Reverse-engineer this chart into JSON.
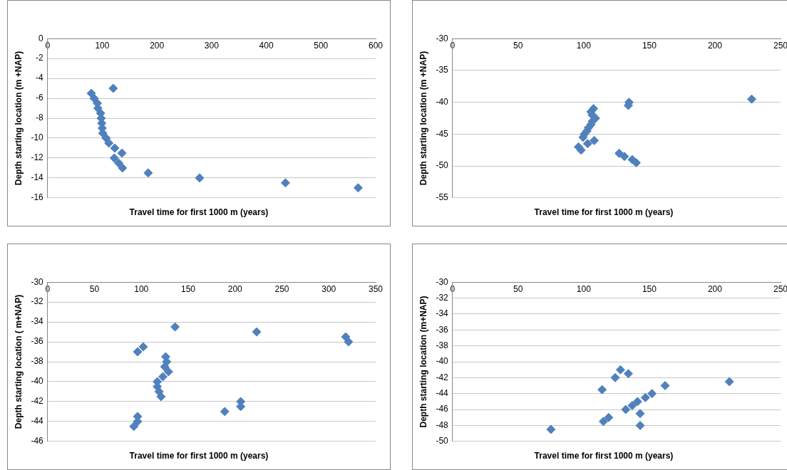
{
  "chart_data": [
    {
      "type": "scatter",
      "xlabel": "Travel time for first 1000 m (years)",
      "ylabel": "Depth starting location (m +NAP)",
      "color": "#4f81bd",
      "marker": "diamond",
      "grid": "y",
      "legend": false,
      "x": [
        120,
        80,
        85,
        91,
        92,
        97,
        98,
        99,
        100,
        101,
        107,
        112,
        123,
        136,
        122,
        130,
        137,
        184,
        278,
        435,
        568
      ],
      "values": [
        -5,
        -5.5,
        -6,
        -6.5,
        -7,
        -7.5,
        -8,
        -8.5,
        -9,
        -9.5,
        -10,
        -10.5,
        -11,
        -11.5,
        -12,
        -12.5,
        -13,
        -13.5,
        -14,
        -14.5,
        -15
      ],
      "xlim": [
        0,
        600
      ],
      "xticks": [
        0,
        100,
        200,
        300,
        400,
        500,
        600
      ],
      "ylim": [
        -16,
        0
      ],
      "yticks": [
        0,
        -2,
        -4,
        -6,
        -8,
        -10,
        -12,
        -14,
        -16
      ]
    },
    {
      "type": "scatter",
      "xlabel": "Travel time for first 1000 m (years)",
      "ylabel": "Depth starting location (m +NAP)",
      "color": "#4f81bd",
      "marker": "diamond",
      "grid": "y",
      "legend": false,
      "x": [
        228,
        134.5,
        134,
        107.5,
        105.5,
        106.5,
        109,
        106.5,
        105.5,
        103.5,
        102.5,
        100.5,
        99.5,
        108,
        103,
        96,
        98,
        127,
        131,
        137,
        140
      ],
      "values": [
        -39.5,
        -40,
        -40.5,
        -41,
        -41.5,
        -42,
        -42.5,
        -43,
        -43.5,
        -44,
        -44.5,
        -45,
        -45.5,
        -46,
        -46.5,
        -47,
        -47.5,
        -48,
        -48.5,
        -49,
        -49.5
      ],
      "xlim": [
        0,
        250
      ],
      "xticks": [
        0,
        50,
        100,
        150,
        200,
        250
      ],
      "ylim": [
        -55,
        -30
      ],
      "yticks": [
        -30,
        -35,
        -40,
        -45,
        -50,
        -55
      ]
    },
    {
      "type": "scatter",
      "xlabel": "Travel time for first 1000 m (years)",
      "ylabel": "Depth starting location ( m+NAP)",
      "color": "#4f81bd",
      "marker": "diamond",
      "grid": "y",
      "legend": false,
      "x": [
        136,
        223,
        318,
        321,
        102,
        96,
        126,
        127,
        125,
        129,
        123,
        117,
        117,
        119,
        121,
        206,
        206,
        189,
        96,
        96,
        92
      ],
      "values": [
        -34.5,
        -35,
        -35.5,
        -36,
        -36.5,
        -37,
        -37.5,
        -38,
        -38.5,
        -39,
        -39.5,
        -40,
        -40.5,
        -41,
        -41.5,
        -42,
        -42.5,
        -43,
        -43.5,
        -44,
        -44.5
      ],
      "xlim": [
        0,
        350
      ],
      "xticks": [
        0,
        50,
        100,
        150,
        200,
        250,
        300,
        350
      ],
      "ylim": [
        -46,
        -30
      ],
      "yticks": [
        -30,
        -32,
        -34,
        -36,
        -38,
        -40,
        -42,
        -44,
        -46
      ]
    },
    {
      "type": "scatter",
      "xlabel": "Travel time for first 1000 m (years)",
      "ylabel": "Depth starting location (m+NAP)",
      "color": "#4f81bd",
      "marker": "diamond",
      "grid": "y",
      "legend": false,
      "x": [
        128,
        134,
        124,
        211,
        162,
        114,
        152,
        147,
        141,
        137,
        132,
        143,
        119,
        115,
        143,
        75
      ],
      "values": [
        -41,
        -41.5,
        -42,
        -42.5,
        -43,
        -43.5,
        -44,
        -44.5,
        -45,
        -45.5,
        -46,
        -46.5,
        -47,
        -47.5,
        -48,
        -48.5
      ],
      "xlim": [
        0,
        250
      ],
      "xticks": [
        0,
        50,
        100,
        150,
        200,
        250
      ],
      "ylim": [
        -50,
        -30
      ],
      "yticks": [
        -30,
        -32,
        -34,
        -36,
        -38,
        -40,
        -42,
        -44,
        -46,
        -48,
        -50
      ]
    }
  ]
}
